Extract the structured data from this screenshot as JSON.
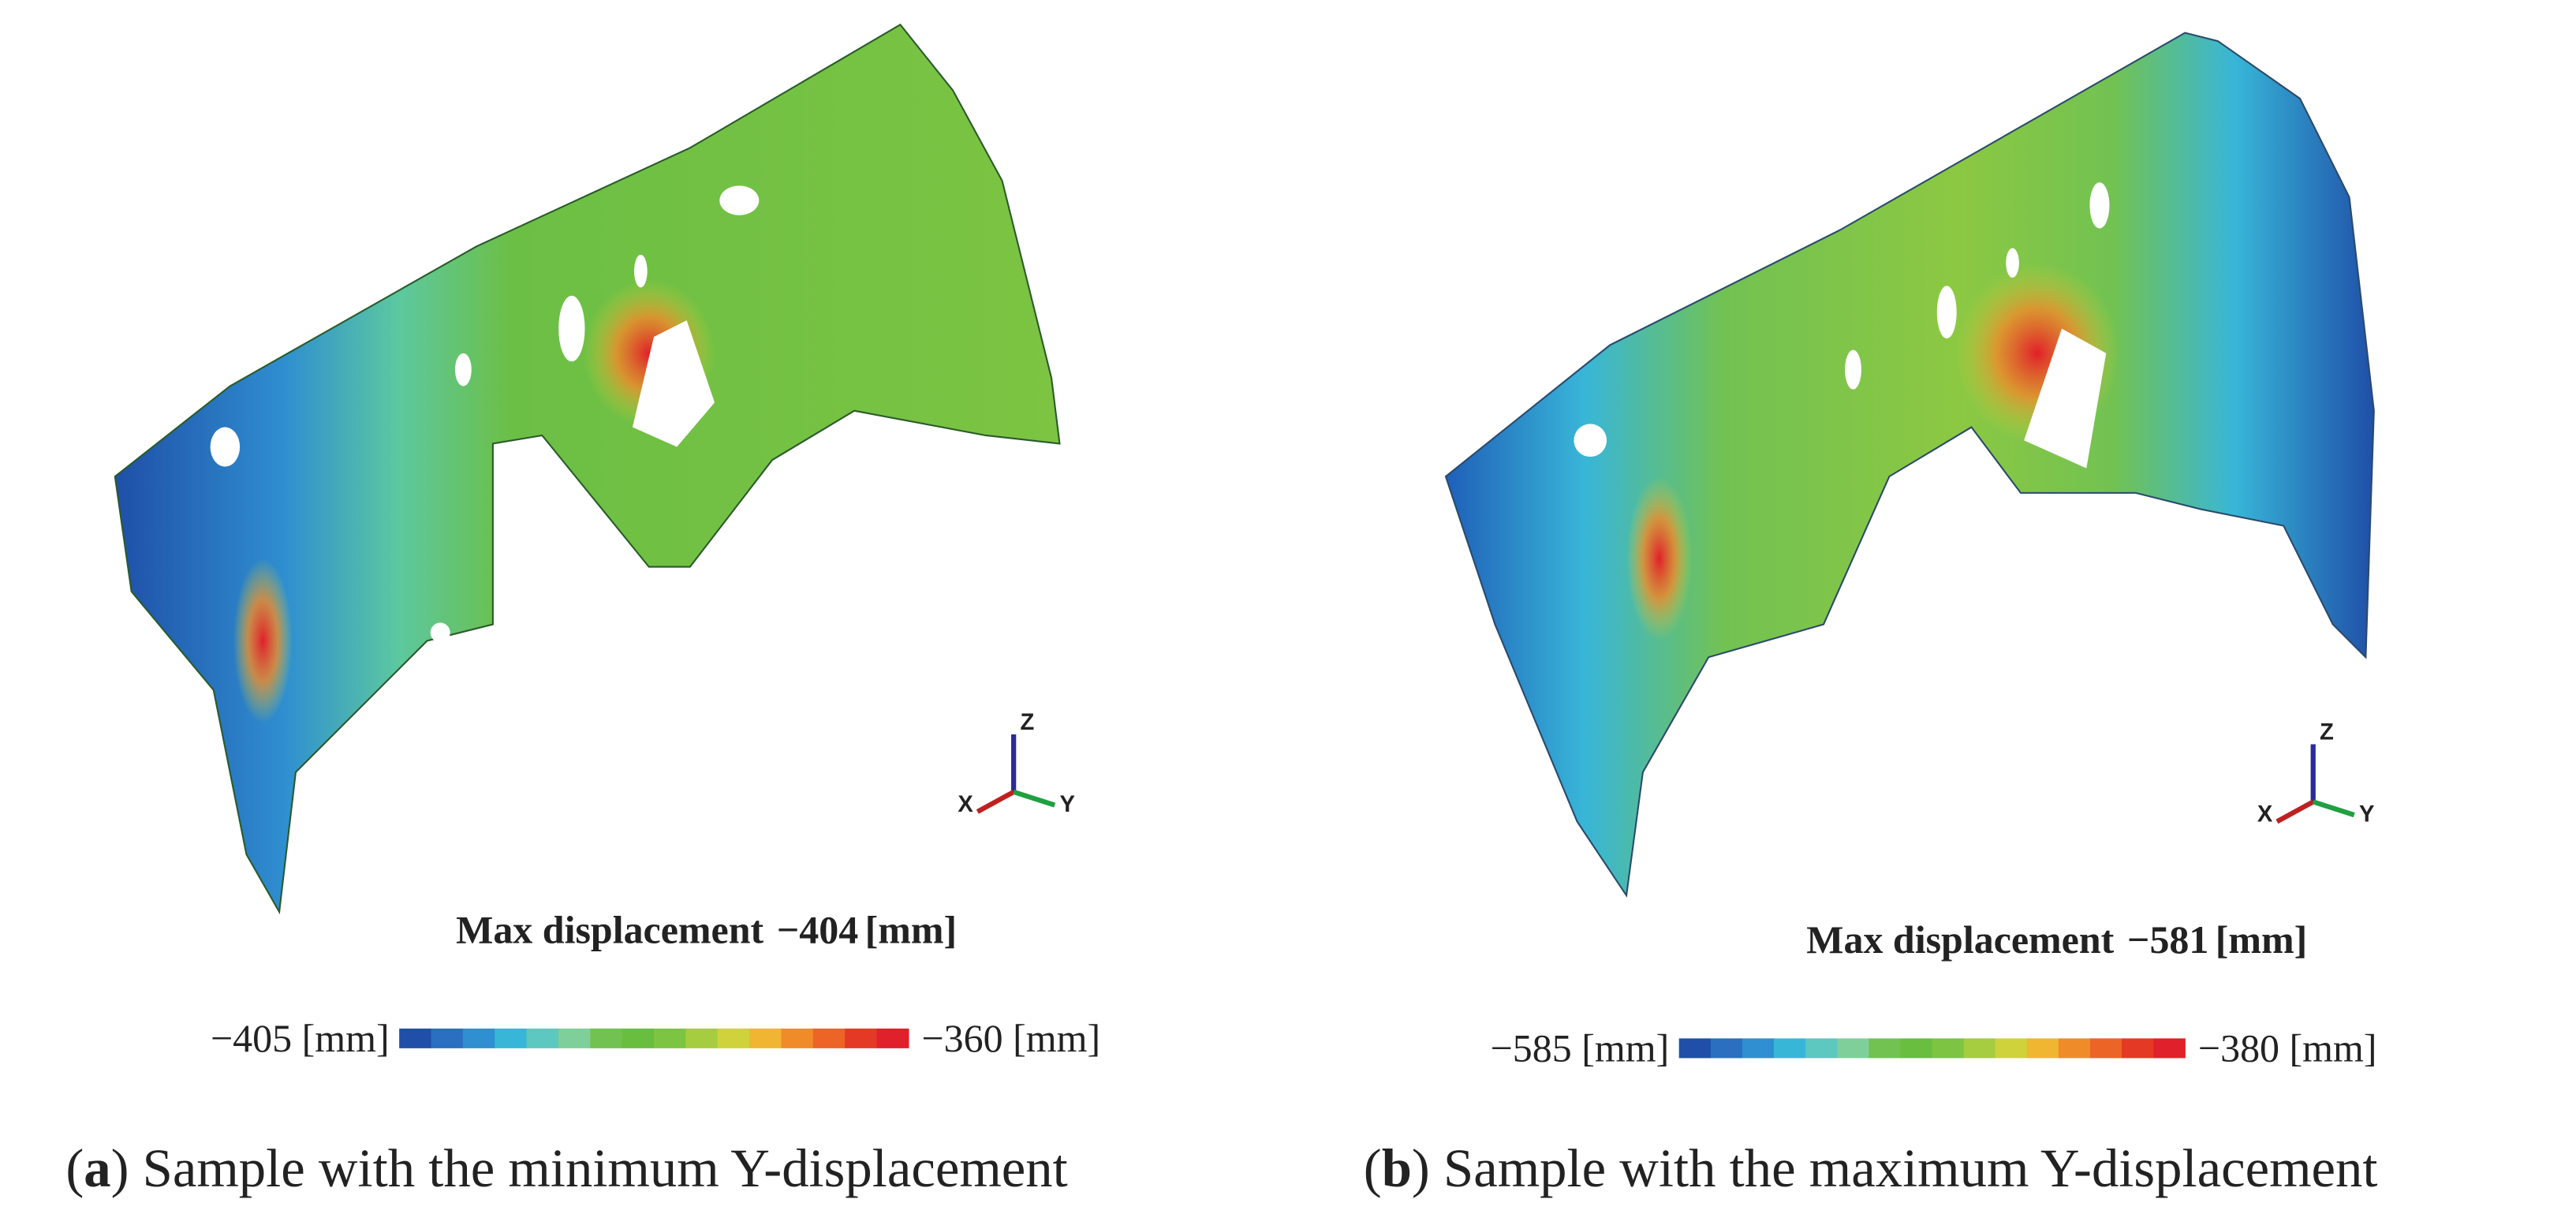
{
  "panels": [
    {
      "title": "Max displacement",
      "max_value": "−404",
      "max_unit": "[mm]",
      "colorbar": {
        "min": "−405",
        "min_unit": "[mm]",
        "max": "−360",
        "max_unit": "[mm]",
        "colors": [
          "#1f4fa8",
          "#2a6fc0",
          "#2f8fd0",
          "#38b6d8",
          "#5cc8c0",
          "#7fcf9a",
          "#72c252",
          "#69bd3f",
          "#7cc442",
          "#a6cc3f",
          "#cfd23a",
          "#f0b531",
          "#f08b2a",
          "#ec6426",
          "#e43a25",
          "#e0202a"
        ]
      },
      "axes": {
        "z": "Z",
        "x": "X",
        "y": "Y"
      },
      "caption": [
        "(",
        "a",
        ") Sample with the minimum Y-displacement"
      ]
    },
    {
      "title": "Max displacement",
      "max_value": "−581",
      "max_unit": "[mm]",
      "colorbar": {
        "min": "−585",
        "min_unit": "[mm]",
        "max": "−380",
        "max_unit": "[mm]",
        "colors": [
          "#1f4fa8",
          "#2a6fc0",
          "#2f8fd0",
          "#38b6d8",
          "#5cc8c0",
          "#7fcf9a",
          "#72c252",
          "#69bd3f",
          "#7cc442",
          "#a6cc3f",
          "#cfd23a",
          "#f0b531",
          "#f08b2a",
          "#ec6426",
          "#e43a25",
          "#e0202a"
        ]
      },
      "axes": {
        "z": "Z",
        "x": "X",
        "y": "Y"
      },
      "caption": [
        "(",
        "b",
        ") Sample with the maximum Y-displacement"
      ]
    }
  ]
}
